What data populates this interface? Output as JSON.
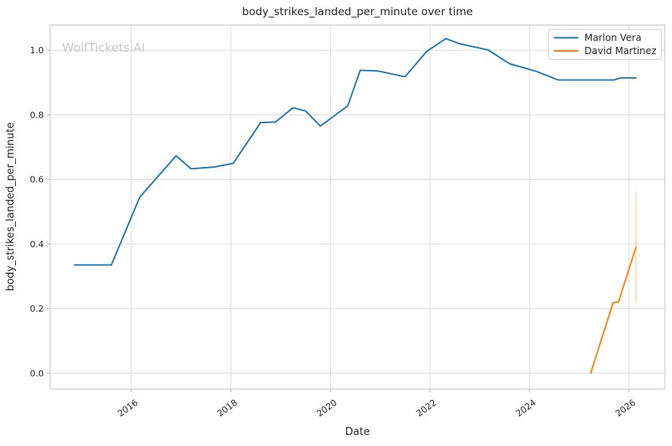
{
  "watermark": "WolfTickets.AI",
  "chart_data": {
    "type": "line",
    "title": "body_strikes_landed_per_minute over time",
    "xlabel": "Date",
    "ylabel": "body_strikes_landed_per_minute",
    "x_ticks": [
      2016,
      2018,
      2020,
      2022,
      2024,
      2026
    ],
    "y_ticks": [
      0.0,
      0.2,
      0.4,
      0.6,
      0.8,
      1.0
    ],
    "xlim": [
      2014.37,
      2026.72
    ],
    "ylim": [
      -0.049,
      1.078
    ],
    "grid": true,
    "legend_position": "upper right",
    "background": "#ffffff",
    "grid_color": "#d9d9d9",
    "series": [
      {
        "name": "Marlon Vera",
        "color": "#1f77b4",
        "x": [
          2014.86,
          2015.6,
          2016.17,
          2016.9,
          2017.2,
          2017.65,
          2018.05,
          2018.6,
          2018.9,
          2019.25,
          2019.5,
          2019.8,
          2020.35,
          2020.6,
          2020.95,
          2021.5,
          2021.94,
          2022.32,
          2022.6,
          2023.17,
          2023.6,
          2024.15,
          2024.58,
          2025.7,
          2025.82,
          2026.14
        ],
        "y": [
          0.335,
          0.335,
          0.545,
          0.673,
          0.633,
          0.638,
          0.65,
          0.776,
          0.778,
          0.822,
          0.812,
          0.765,
          0.828,
          0.938,
          0.936,
          0.918,
          0.997,
          1.036,
          1.02,
          1.001,
          0.958,
          0.934,
          0.908,
          0.908,
          0.914,
          0.914
        ]
      },
      {
        "name": "David Martinez",
        "color": "#ff7f0e",
        "x": [
          2025.23,
          2025.68,
          2025.79,
          2026.14
        ],
        "y": [
          0.0,
          0.218,
          0.221,
          0.39
        ],
        "error_bar": {
          "x": 2026.14,
          "y_low": 0.218,
          "y_high": 0.562
        }
      }
    ]
  }
}
